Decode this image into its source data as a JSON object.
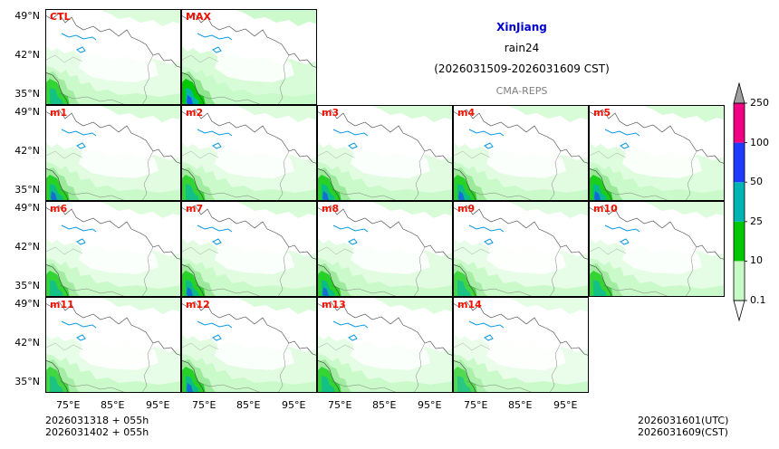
{
  "colors": {
    "title": "#0000cc",
    "label": "#ee1100",
    "source": "#808080"
  },
  "header": {
    "region": "XinJiang",
    "variable": "rain24",
    "period": "(2026031509-2026031609 CST)",
    "source": "CMA-REPS"
  },
  "panels": [
    {
      "name": "CTL",
      "intensity": 0.9
    },
    {
      "name": "MAX",
      "intensity": 1.3
    },
    {
      "name": "m1",
      "intensity": 1.0
    },
    {
      "name": "m2",
      "intensity": 0.9
    },
    {
      "name": "m3",
      "intensity": 1.0
    },
    {
      "name": "m4",
      "intensity": 1.0
    },
    {
      "name": "m5",
      "intensity": 1.1
    },
    {
      "name": "m6",
      "intensity": 0.9
    },
    {
      "name": "m7",
      "intensity": 1.0
    },
    {
      "name": "m8",
      "intensity": 1.0
    },
    {
      "name": "m9",
      "intensity": 0.8
    },
    {
      "name": "m10",
      "intensity": 0.9
    },
    {
      "name": "m11",
      "intensity": 0.8
    },
    {
      "name": "m12",
      "intensity": 1.0
    },
    {
      "name": "m13",
      "intensity": 0.9
    },
    {
      "name": "m14",
      "intensity": 0.7
    }
  ],
  "axes": {
    "lat_labels": [
      "49°N",
      "42°N",
      "35°N"
    ],
    "lon_labels": [
      "75°E",
      "85°E",
      "95°E"
    ]
  },
  "colorbar": {
    "levels": [
      "0.1",
      "10",
      "25",
      "50",
      "100",
      "250"
    ],
    "colors": [
      "#c8fac8",
      "#00c800",
      "#00b4b4",
      "#1e3cff",
      "#f00082"
    ],
    "extend_color": "#a0a0a0"
  },
  "footer": {
    "init_line1": "2026031318  +  055h",
    "init_line2": "2026031402  +  055h",
    "valid_utc": "2026031601(UTC)",
    "valid_cst": "2026031609(CST)"
  }
}
